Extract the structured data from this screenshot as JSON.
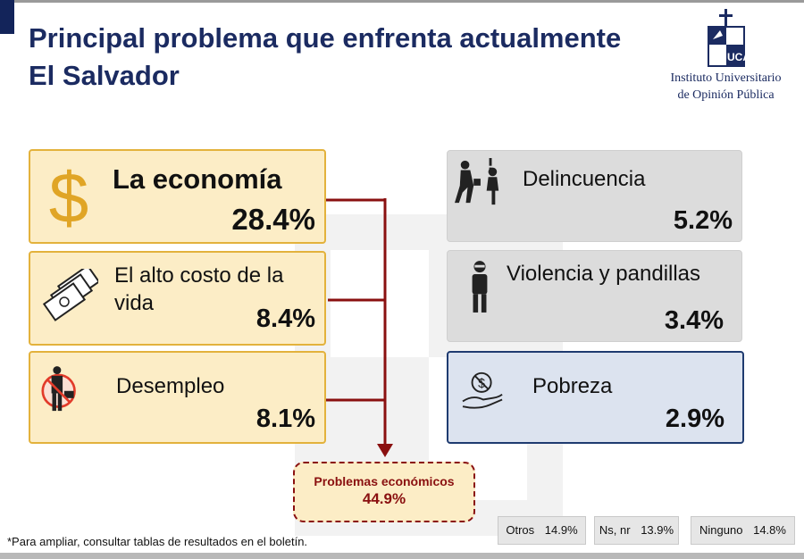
{
  "header": {
    "title_line1": "Principal problema que enfrenta actualmente",
    "title_line2": "El Salvador"
  },
  "institution": {
    "logo_text": "UCA",
    "line1": "Instituto Universitario",
    "line2": "de Opinión Pública"
  },
  "chart_data": {
    "type": "table",
    "items": [
      {
        "label": "La economía",
        "value": 28.4,
        "display": "28.4%",
        "group": "economic",
        "icon": "dollar-icon"
      },
      {
        "label": "El alto costo de la vida",
        "value": 8.4,
        "display": "8.4%",
        "group": "economic",
        "icon": "money-bills-icon"
      },
      {
        "label": "Desempleo",
        "value": 8.1,
        "display": "8.1%",
        "group": "economic",
        "icon": "unemployment-icon"
      },
      {
        "label": "Delincuencia",
        "value": 5.2,
        "display": "5.2%",
        "group": "other",
        "icon": "robbery-icon"
      },
      {
        "label": "Violencia y pandillas",
        "value": 3.4,
        "display": "3.4%",
        "group": "other",
        "icon": "masked-person-icon"
      },
      {
        "label": "Pobreza",
        "value": 2.9,
        "display": "2.9%",
        "group": "other",
        "icon": "poverty-hand-icon"
      }
    ],
    "economic_total": {
      "label": "Problemas económicos",
      "value": 44.9,
      "display": "44.9%"
    },
    "minor": [
      {
        "label": "Otros",
        "value": 14.9,
        "display": "14.9%"
      },
      {
        "label": "Ns, nr",
        "value": 13.9,
        "display": "13.9%"
      },
      {
        "label": "Ninguno",
        "value": 14.8,
        "display": "14.8%"
      }
    ],
    "colors": {
      "economic_fill": "#fcedc6",
      "economic_border": "#e3b23c",
      "connector": "#8a1010",
      "other_fill": "#dcdcdc",
      "highlight_fill": "#dce3ef",
      "highlight_border": "#1f3b70",
      "title": "#1b2b61"
    }
  },
  "footnote": "*Para ampliar, consultar tablas de resultados en el boletín."
}
